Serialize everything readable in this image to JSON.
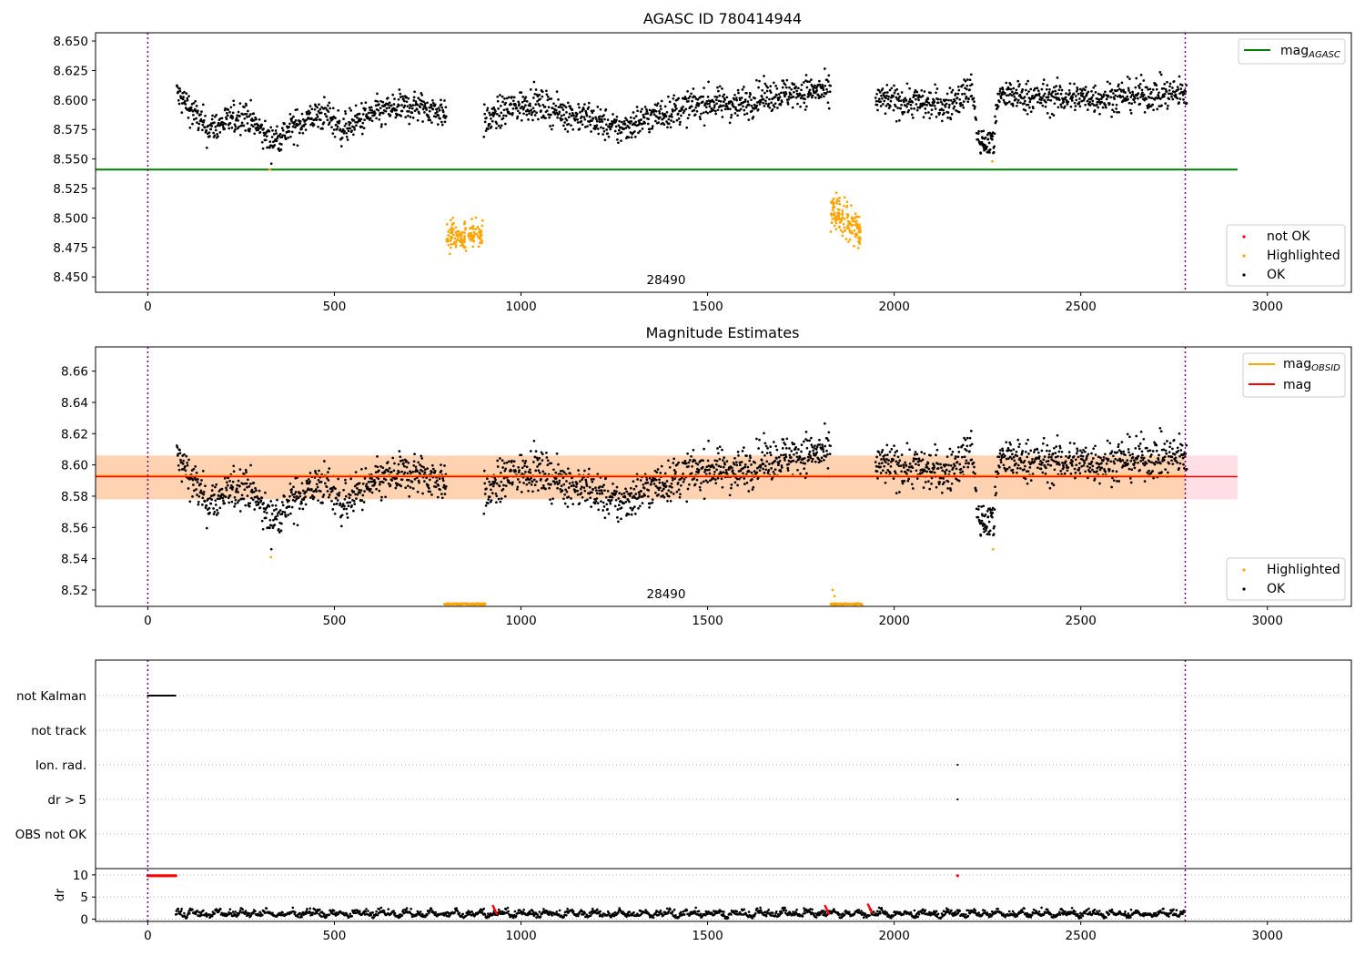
{
  "chart_data": [
    {
      "type": "scatter",
      "title": "AGASC ID 780414944",
      "annotation": "28490",
      "xlim": [
        -140,
        3225
      ],
      "ylim": [
        8.437,
        8.657
      ],
      "xticks": [
        0,
        500,
        1000,
        1500,
        2000,
        2500,
        3000
      ],
      "yticks": [
        8.45,
        8.475,
        8.5,
        8.525,
        8.55,
        8.575,
        8.6,
        8.625,
        8.65
      ],
      "ytick_labels": [
        "8.450",
        "8.475",
        "8.500",
        "8.525",
        "8.550",
        "8.575",
        "8.600",
        "8.625",
        "8.650"
      ],
      "vlines": [
        0,
        2780
      ],
      "hline": {
        "name": "mag",
        "subscript": "AGASC",
        "y": 8.541,
        "xrange": [
          -140,
          2920
        ],
        "color": "#008000"
      },
      "legend_lines": [
        {
          "name": "mag",
          "subscript": "AGASC",
          "color": "#008000"
        }
      ],
      "legend_points": [
        {
          "name": "not OK",
          "color": "#ff0000"
        },
        {
          "name": "Highlighted",
          "color": "#ffa500"
        },
        {
          "name": "OK",
          "color": "#000000"
        }
      ],
      "ok_trend": [
        [
          80,
          8.605
        ],
        [
          120,
          8.59
        ],
        [
          160,
          8.575
        ],
        [
          200,
          8.58
        ],
        [
          260,
          8.588
        ],
        [
          300,
          8.575
        ],
        [
          330,
          8.565
        ],
        [
          380,
          8.575
        ],
        [
          430,
          8.585
        ],
        [
          480,
          8.588
        ],
        [
          520,
          8.575
        ],
        [
          580,
          8.585
        ],
        [
          650,
          8.592
        ],
        [
          720,
          8.595
        ],
        [
          790,
          8.59
        ],
        [
          900,
          8.58
        ],
        [
          960,
          8.592
        ],
        [
          1030,
          8.598
        ],
        [
          1100,
          8.59
        ],
        [
          1180,
          8.585
        ],
        [
          1260,
          8.575
        ],
        [
          1340,
          8.585
        ],
        [
          1420,
          8.592
        ],
        [
          1500,
          8.598
        ],
        [
          1580,
          8.596
        ],
        [
          1650,
          8.603
        ],
        [
          1720,
          8.606
        ],
        [
          1800,
          8.608
        ],
        [
          1830,
          8.605
        ],
        [
          1960,
          8.6
        ],
        [
          2060,
          8.598
        ],
        [
          2140,
          8.595
        ],
        [
          2210,
          8.61
        ],
        [
          2225,
          8.565
        ],
        [
          2265,
          8.565
        ],
        [
          2280,
          8.604
        ],
        [
          2400,
          8.602
        ],
        [
          2500,
          8.602
        ],
        [
          2560,
          8.602
        ],
        [
          2650,
          8.604
        ],
        [
          2780,
          8.606
        ]
      ],
      "ok_gaps": [
        [
          800,
          900
        ],
        [
          1830,
          1950
        ],
        [
          2222,
          2270
        ]
      ],
      "dip_segment": [
        2225,
        2270,
        8.565
      ],
      "highlight_clusters": [
        {
          "x": [
            800,
            900
          ],
          "y": [
            8.47,
            8.5
          ]
        },
        {
          "x": [
            1830,
            1910
          ],
          "y": [
            8.48,
            8.515
          ]
        }
      ],
      "highlight_singles": [
        [
          327,
          8.541
        ],
        [
          2263,
          8.548
        ]
      ]
    },
    {
      "type": "scatter",
      "title": "Magnitude Estimates",
      "annotation": "28490",
      "xlim": [
        -140,
        3225
      ],
      "ylim": [
        8.5095,
        8.6755
      ],
      "xticks": [
        0,
        500,
        1000,
        1500,
        2000,
        2500,
        3000
      ],
      "yticks": [
        8.52,
        8.54,
        8.56,
        8.58,
        8.6,
        8.62,
        8.64,
        8.66
      ],
      "ytick_labels": [
        "8.52",
        "8.54",
        "8.56",
        "8.58",
        "8.60",
        "8.62",
        "8.64",
        "8.66"
      ],
      "vlines": [
        0,
        2780
      ],
      "band_pink": {
        "y": [
          8.578,
          8.606
        ],
        "x": [
          -140,
          2920
        ]
      },
      "band_orange": {
        "y": [
          8.578,
          8.606
        ],
        "x": [
          -140,
          2780
        ]
      },
      "mag_obsid_line": {
        "name": "mag",
        "subscript": "OBSID",
        "y": 8.593,
        "color": "#ffa500"
      },
      "mag_line": {
        "name": "mag",
        "y": 8.5925,
        "color": "#ff0000"
      },
      "legend_lines": [
        {
          "name": "mag",
          "subscript": "OBSID",
          "color": "#ffa500"
        },
        {
          "name": "mag",
          "subscript": "",
          "color": "#ff0000"
        }
      ],
      "legend_points": [
        {
          "name": "Highlighted",
          "color": "#ffa500"
        },
        {
          "name": "OK",
          "color": "#000000"
        }
      ],
      "floor_segments": [
        [
          795,
          905,
          8.511
        ],
        [
          1830,
          1915,
          8.511
        ]
      ],
      "highlight_singles": [
        [
          330,
          8.541
        ],
        [
          2265,
          8.546
        ],
        [
          1835,
          8.52
        ],
        [
          1840,
          8.516
        ]
      ]
    },
    {
      "type": "scatter",
      "title": "",
      "xlim": [
        -140,
        3225
      ],
      "xticks": [
        0,
        500,
        1000,
        1500,
        2000,
        2500,
        3000
      ],
      "flag_labels": [
        "not Kalman",
        "not track",
        "Ion. rad.",
        "dr > 5",
        "OBS not OK"
      ],
      "flag_points": [
        {
          "flag": "not Kalman",
          "x_range": [
            0,
            75
          ]
        },
        {
          "flag": "Ion. rad.",
          "x": 2170
        },
        {
          "flag": "dr > 5",
          "x": 2170
        }
      ],
      "dr_ylabel": "dr",
      "dr_ylim": [
        -0.5,
        11
      ],
      "dr_yticks": [
        0,
        5,
        10
      ],
      "dr_red_cap": {
        "x_range": [
          0,
          75
        ],
        "y": 9.8
      },
      "dr_red_single": [
        2170,
        9.8
      ],
      "dr_spikes": [
        [
          925,
          3
        ],
        [
          1815,
          3
        ],
        [
          1930,
          3.3
        ]
      ],
      "dr_trace_x": [
        75,
        2780
      ],
      "vlines": [
        0,
        2780
      ]
    }
  ]
}
